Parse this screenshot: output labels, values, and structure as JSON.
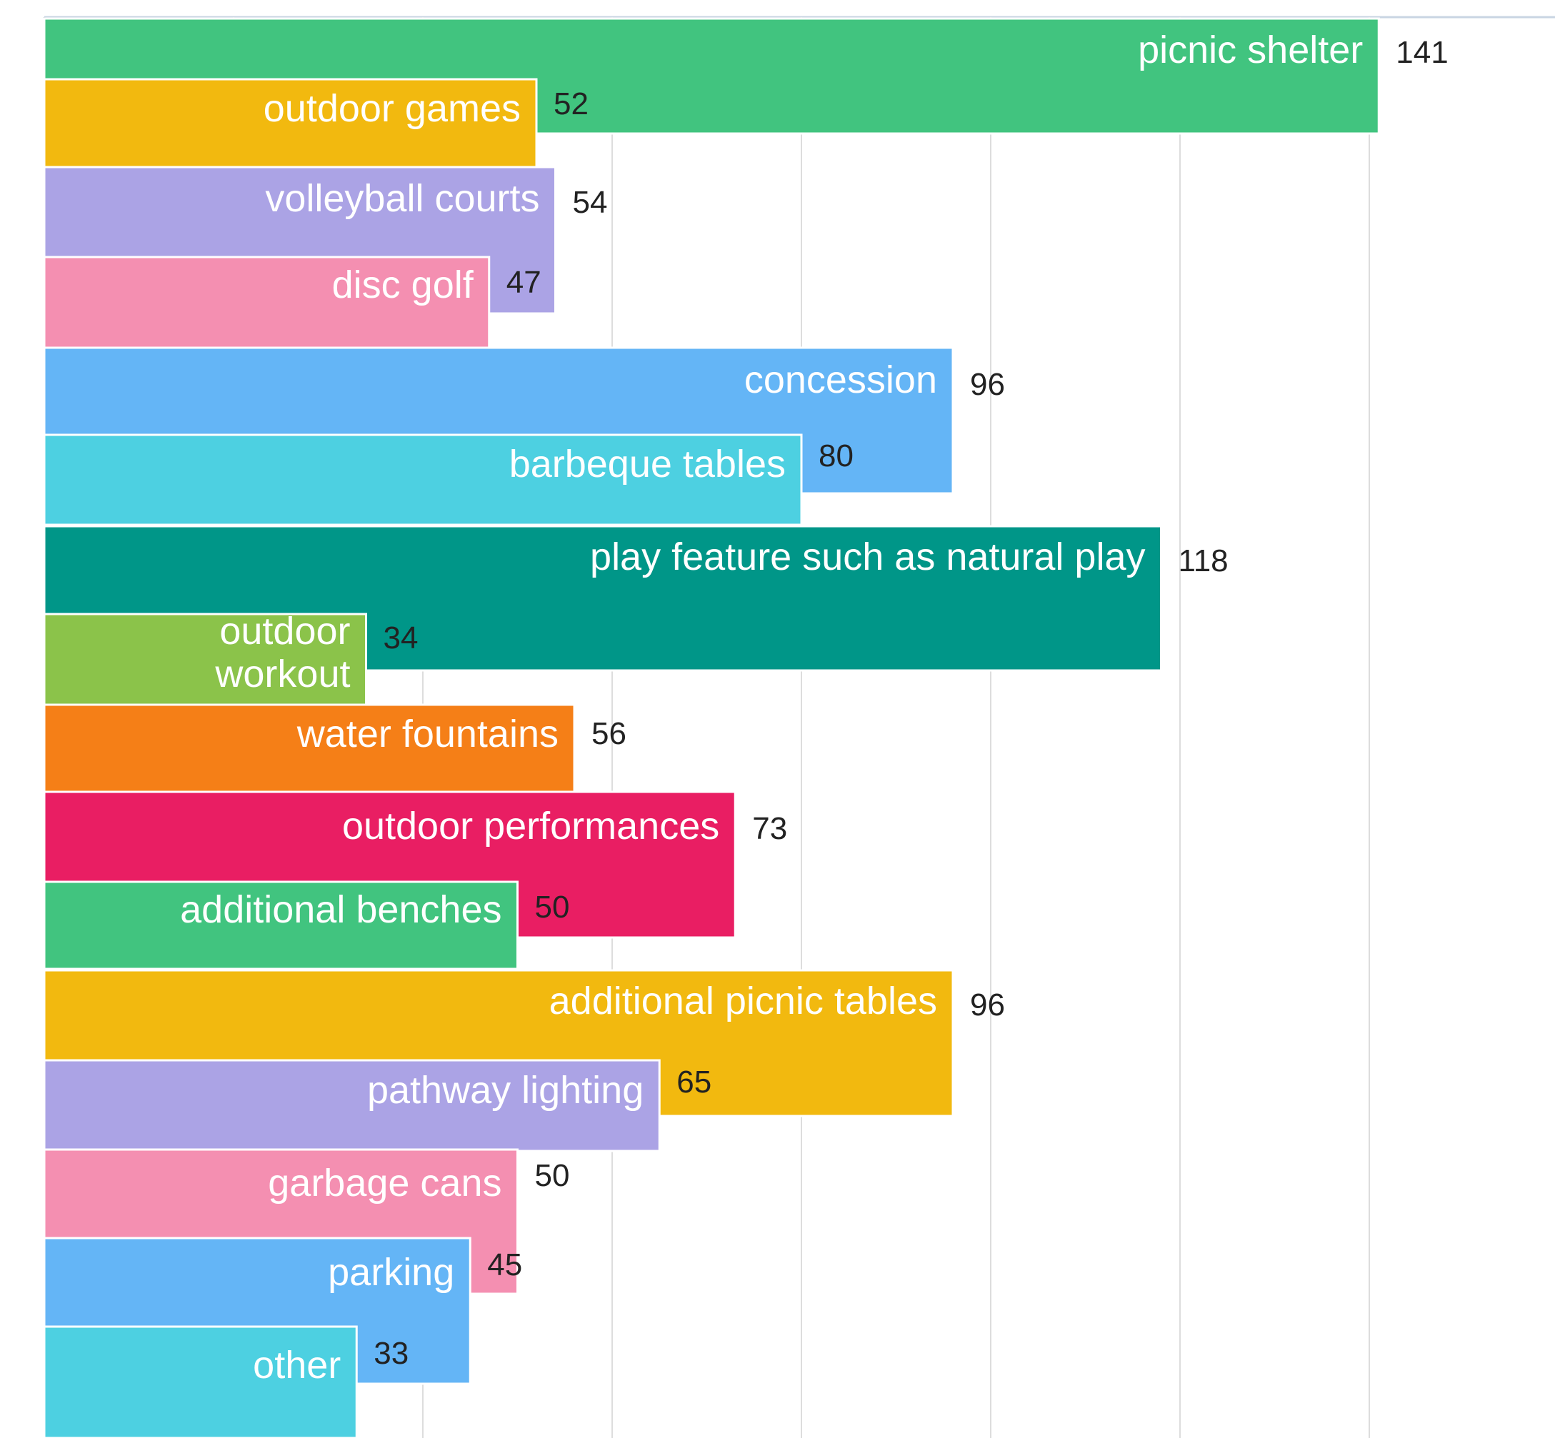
{
  "chart_data": {
    "type": "bar",
    "orientation": "horizontal",
    "title": "",
    "xlabel": "",
    "ylabel": "",
    "xlim": [
      0,
      164
    ],
    "grid": true,
    "gridlines": [
      0,
      20,
      40,
      60,
      80,
      100,
      120,
      140
    ],
    "legend": "none",
    "items": [
      {
        "category": "picnic shelter",
        "value": 141,
        "color": "#41C47F"
      },
      {
        "category": "outdoor games",
        "value": 52,
        "color": "#F2B90F"
      },
      {
        "category": "volleyball courts",
        "value": 54,
        "color": "#ABA3E5"
      },
      {
        "category": "disc golf",
        "value": 47,
        "color": "#F48FB1"
      },
      {
        "category": "concession",
        "value": 96,
        "color": "#64B5F6"
      },
      {
        "category": "barbeque tables",
        "value": 80,
        "color": "#4DD0E1"
      },
      {
        "category": "play feature such as natural play",
        "value": 118,
        "color": "#009688"
      },
      {
        "category": "outdoor workout",
        "value": 34,
        "color": "#8BC34A"
      },
      {
        "category": "water fountains",
        "value": 56,
        "color": "#F57F17"
      },
      {
        "category": "outdoor performances",
        "value": 73,
        "color": "#E91E63"
      },
      {
        "category": "additional benches",
        "value": 50,
        "color": "#41C47F"
      },
      {
        "category": "additional picnic tables",
        "value": 96,
        "color": "#F2B90F"
      },
      {
        "category": "pathway lighting",
        "value": 65,
        "color": "#ABA3E5"
      },
      {
        "category": "garbage cans",
        "value": 50,
        "color": "#F48FB1"
      },
      {
        "category": "parking",
        "value": 45,
        "color": "#64B5F6"
      },
      {
        "category": "other",
        "value": 33,
        "color": "#4DD0E1"
      }
    ]
  }
}
